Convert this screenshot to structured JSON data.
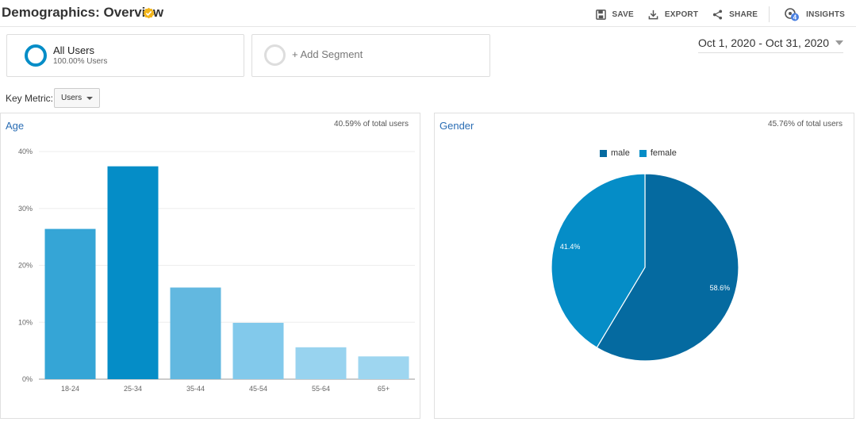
{
  "header": {
    "title": "Demographics: Overview",
    "actions": [
      {
        "label": "SAVE",
        "icon": "save-icon"
      },
      {
        "label": "EXPORT",
        "icon": "export-icon"
      },
      {
        "label": "SHARE",
        "icon": "share-icon"
      },
      {
        "label": "INSIGHTS",
        "icon": "insights-icon",
        "badge": "4"
      }
    ]
  },
  "segments": {
    "active": {
      "name": "All Users",
      "sub": "100.00% Users"
    },
    "add_label": "+ Add Segment"
  },
  "date_range": "Oct 1, 2020 - Oct 31, 2020",
  "key_metric": {
    "label": "Key Metric:",
    "value": "Users"
  },
  "age_panel": {
    "title": "Age",
    "pct_total": "40.59% of total users"
  },
  "gender_panel": {
    "title": "Gender",
    "pct_total": "45.76% of total users"
  },
  "colors": {
    "accent": "#058dc7",
    "male": "#056aa0",
    "female": "#058dc7",
    "bars": [
      "#35a5d6",
      "#058dc7",
      "#62b8e0",
      "#82c9eb",
      "#98d3ef",
      "#9ed6f0"
    ]
  },
  "chart_data": [
    {
      "type": "bar",
      "categories": [
        "18-24",
        "25-34",
        "35-44",
        "45-54",
        "55-64",
        "65+"
      ],
      "values": [
        26.4,
        37.4,
        16.1,
        9.9,
        5.6,
        4.0
      ],
      "yticks": [
        "0%",
        "10%",
        "20%",
        "30%",
        "40%"
      ],
      "ylim": [
        0,
        40
      ],
      "grid": true
    },
    {
      "type": "pie",
      "labels": [
        "male",
        "female"
      ],
      "values": [
        58.6,
        41.4
      ],
      "value_labels": [
        "58.6%",
        "41.4%"
      ],
      "legend": "top"
    }
  ]
}
